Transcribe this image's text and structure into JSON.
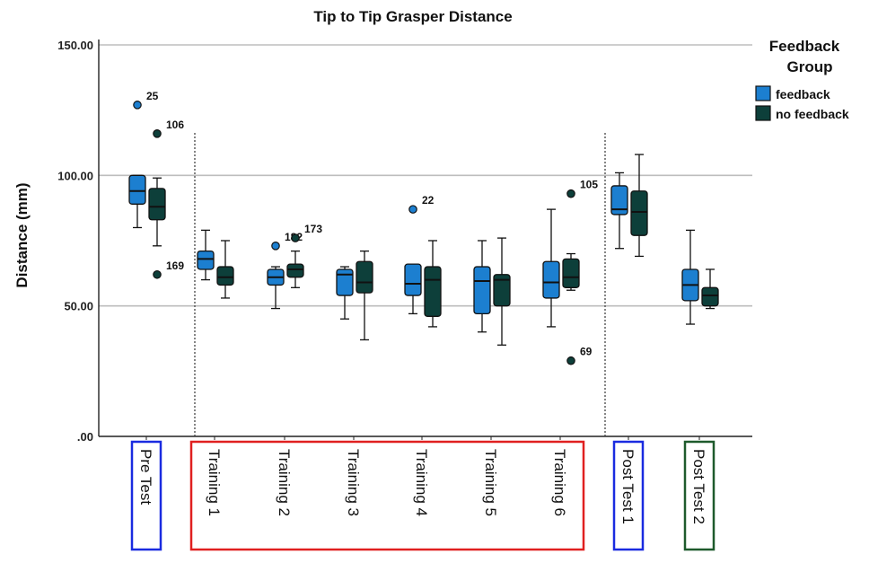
{
  "chart_data": {
    "type": "boxplot",
    "title": "Tip to Tip Grasper Distance",
    "ylabel": "Distance (mm)",
    "xlabel": "",
    "ylim": [
      0,
      150
    ],
    "yticks": [
      0,
      50,
      100,
      150
    ],
    "ytick_labels": [
      ".00",
      "50.00",
      "100.00",
      "150.00"
    ],
    "grid": "horizontal",
    "legend": {
      "title_line1": "Feedback",
      "title_line2": "Group",
      "placement": "top-right"
    },
    "colors": {
      "feedback": "#1c7fd0",
      "no_feedback": "#0d3f3a",
      "pre_test_box": "#1a2be0",
      "training_box": "#e02020",
      "post_test_1_box": "#1a2be0",
      "post_test_2_box": "#1e5a2c",
      "grid": "#bdbdbd",
      "separator": "#444444"
    },
    "categories": [
      "Pre Test",
      "Training 1",
      "Training 2",
      "Training 3",
      "Training 4",
      "Training 5",
      "Training 6",
      "Post Test 1",
      "Post Test 2"
    ],
    "series": [
      {
        "name": "feedback",
        "boxes": [
          {
            "min": 80,
            "q1": 89,
            "median": 94,
            "q3": 100,
            "max": 100
          },
          {
            "min": 60,
            "q1": 64,
            "median": 68,
            "q3": 71,
            "max": 79
          },
          {
            "min": 49,
            "q1": 58,
            "median": 61,
            "q3": 64,
            "max": 65
          },
          {
            "min": 45,
            "q1": 54,
            "median": 62,
            "q3": 64,
            "max": 65
          },
          {
            "min": 47,
            "q1": 54,
            "median": 58.5,
            "q3": 66,
            "max": 66
          },
          {
            "min": 40,
            "q1": 47,
            "median": 59.5,
            "q3": 65,
            "max": 75
          },
          {
            "min": 42,
            "q1": 53,
            "median": 59,
            "q3": 67,
            "max": 87
          },
          {
            "min": 72,
            "q1": 85,
            "median": 87,
            "q3": 96,
            "max": 101
          },
          {
            "min": 43,
            "q1": 52,
            "median": 58,
            "q3": 64,
            "max": 79
          }
        ]
      },
      {
        "name": "no feedback",
        "boxes": [
          {
            "min": 73,
            "q1": 83,
            "median": 88,
            "q3": 95,
            "max": 99
          },
          {
            "min": 53,
            "q1": 58,
            "median": 61,
            "q3": 65,
            "max": 75
          },
          {
            "min": 57,
            "q1": 61,
            "median": 64,
            "q3": 66,
            "max": 71
          },
          {
            "min": 37,
            "q1": 55,
            "median": 59,
            "q3": 67,
            "max": 71
          },
          {
            "min": 42,
            "q1": 46,
            "median": 60,
            "q3": 65,
            "max": 75
          },
          {
            "min": 35,
            "q1": 50,
            "median": 60,
            "q3": 62,
            "max": 76
          },
          {
            "min": 56,
            "q1": 57,
            "median": 61,
            "q3": 68,
            "max": 70
          },
          {
            "min": 69,
            "q1": 77,
            "median": 86,
            "q3": 94,
            "max": 108
          },
          {
            "min": 49,
            "q1": 50,
            "median": 54,
            "q3": 57,
            "max": 64
          }
        ]
      }
    ],
    "outliers": [
      {
        "category": "Pre Test",
        "series": "feedback",
        "value": 127,
        "label": "25"
      },
      {
        "category": "Pre Test",
        "series": "no feedback",
        "value": 116,
        "label": "106"
      },
      {
        "category": "Pre Test",
        "series": "no feedback",
        "value": 62,
        "label": "169"
      },
      {
        "category": "Training 2",
        "series": "feedback",
        "value": 73,
        "label": "182"
      },
      {
        "category": "Training 2",
        "series": "no feedback",
        "value": 76,
        "label": "173"
      },
      {
        "category": "Training 4",
        "series": "feedback",
        "value": 87,
        "label": "22"
      },
      {
        "category": "Training 6",
        "series": "no feedback",
        "value": 93,
        "label": "105"
      },
      {
        "category": "Training 6",
        "series": "no feedback",
        "value": 29,
        "label": "69"
      }
    ]
  }
}
